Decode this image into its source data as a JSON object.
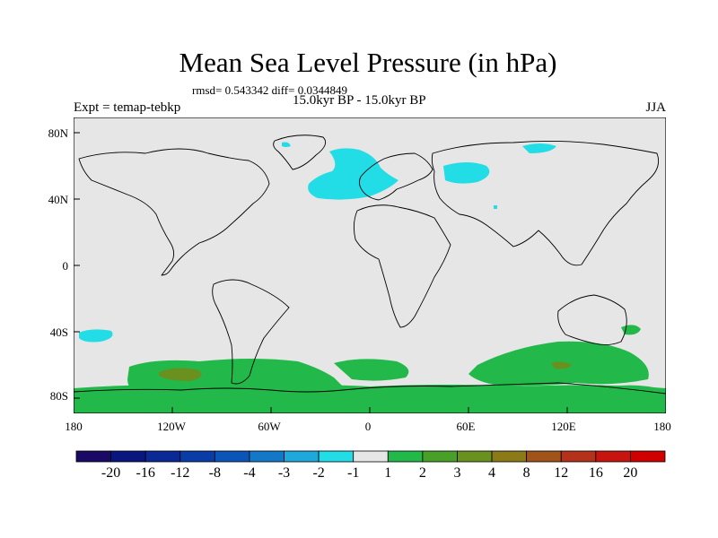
{
  "title": "Mean Sea Level Pressure (in hPa)",
  "stats": "rmsd= 0.543342 diff= 0.0344849",
  "experiment": "Expt = temap-tebkp",
  "period": "15.0kyr BP - 15.0kyr BP",
  "season": "JJA",
  "lat_ticks": [
    "80N",
    "40N",
    "0",
    "40S",
    "80S"
  ],
  "lon_ticks": [
    "180",
    "120W",
    "60W",
    "0",
    "60E",
    "120E",
    "180"
  ],
  "colorbar": {
    "labels": [
      "-20",
      "-16",
      "-12",
      "-8",
      "-4",
      "-3",
      "-2",
      "-1",
      "1",
      "2",
      "3",
      "4",
      "8",
      "12",
      "16",
      "20"
    ],
    "colors": [
      "#1a0a66",
      "#0a1680",
      "#0a2896",
      "#0a3ca8",
      "#0c55b8",
      "#1478c8",
      "#1ea8dc",
      "#22dde6",
      "#e6e6e6",
      "#22b84a",
      "#48a028",
      "#6a9020",
      "#8a7a18",
      "#a0541a",
      "#b4321a",
      "#c8140e",
      "#d00000"
    ]
  },
  "background_color": "#e6e6e6",
  "coast_color": "#000000"
}
